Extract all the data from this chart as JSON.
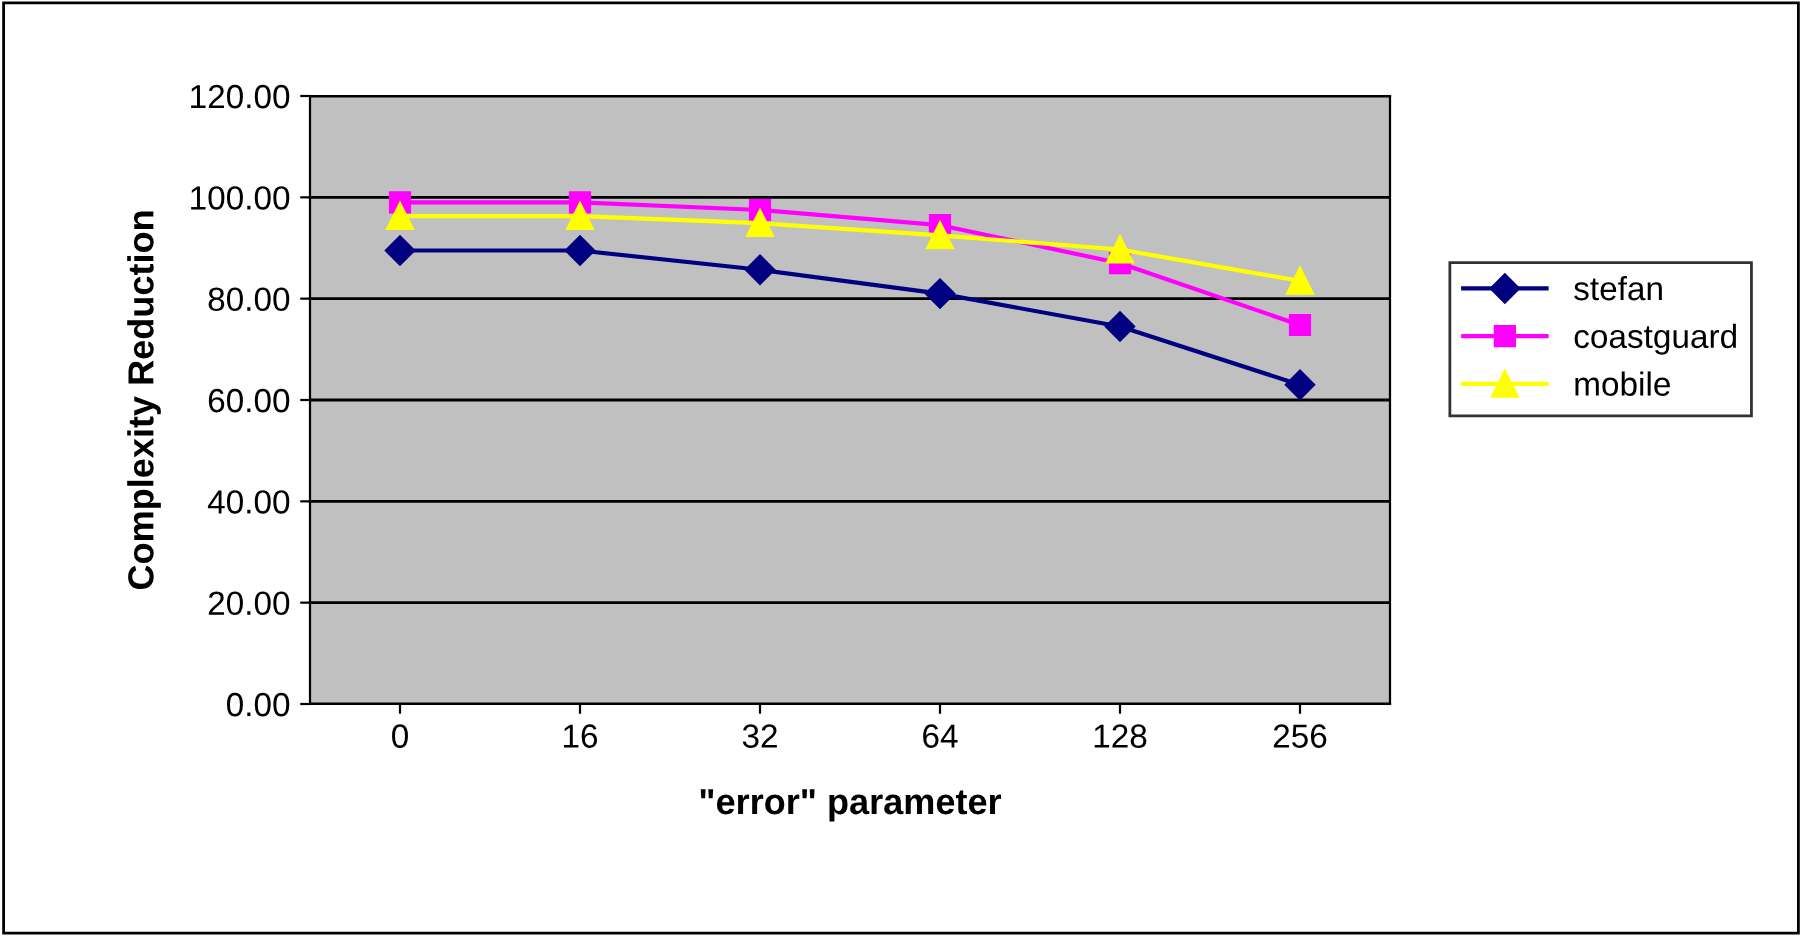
{
  "chart_data": {
    "type": "line",
    "xlabel": "\"error\" parameter",
    "ylabel": "Complexity Reduction",
    "categories": [
      "0",
      "16",
      "32",
      "64",
      "128",
      "256"
    ],
    "series": [
      {
        "name": "stefan",
        "color": "#000080",
        "marker": "diamond",
        "values": [
          89.5,
          89.5,
          85.7,
          81.0,
          74.5,
          63.0
        ]
      },
      {
        "name": "coastguard",
        "color": "#ff00ff",
        "marker": "square",
        "values": [
          99.0,
          99.0,
          97.5,
          94.5,
          87.0,
          74.8
        ]
      },
      {
        "name": "mobile",
        "color": "#ffff00",
        "marker": "triangle",
        "values": [
          96.3,
          96.3,
          94.9,
          92.5,
          89.7,
          83.5
        ]
      }
    ],
    "ylim": [
      0,
      120
    ],
    "yticks": [
      {
        "value": 0,
        "label": "0.00"
      },
      {
        "value": 20,
        "label": "20.00"
      },
      {
        "value": 40,
        "label": "40.00"
      },
      {
        "value": 60,
        "label": "60.00"
      },
      {
        "value": 80,
        "label": "80.00"
      },
      {
        "value": 100,
        "label": "100.00"
      },
      {
        "value": 120,
        "label": "120.00"
      }
    ],
    "grid": "y",
    "legend": "right"
  }
}
